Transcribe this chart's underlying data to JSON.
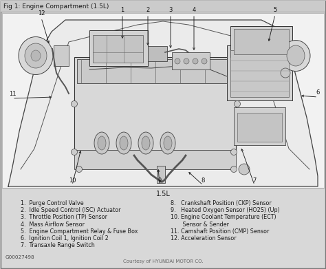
{
  "title": "Fig 1: Engine Compartment (1.5L)",
  "subtitle": "1.5L",
  "footer": "Courtesy of HYUNDAI MOTOR CO.",
  "figure_code": "G00027498",
  "page_bg": "#c8c8c8",
  "content_bg": "#d4d4d4",
  "engine_bg": "#e0e0e0",
  "text_color": "#1a1a1a",
  "title_fontsize": 6.5,
  "label_fontsize": 5.8,
  "subtitle_fontsize": 7.0,
  "footer_fontsize": 5.0,
  "code_fontsize": 5.2,
  "num_fontsize": 6.0,
  "left_labels": [
    "1.  Purge Control Valve",
    "2.  Idle Speed Control (ISC) Actuator",
    "3.  Throttle Position (TP) Sensor",
    "4.  Mass Airflow Sensor",
    "5.  Engine Compartment Relay & Fuse Box",
    "6.  Ignition Coil 1, Ignition Coil 2",
    "7.  Transaxle Range Switch"
  ],
  "right_labels": [
    "8.   Crankshaft Position (CKP) Sensor",
    "9.   Heated Oxygen Sensor (HO2S) (Up)",
    "10. Engine Coolant Temperature (ECT)",
    "      Sensor & Sender",
    "11. Camshaft Position (CMP) Sensor",
    "12. Acceleration Sensor"
  ]
}
